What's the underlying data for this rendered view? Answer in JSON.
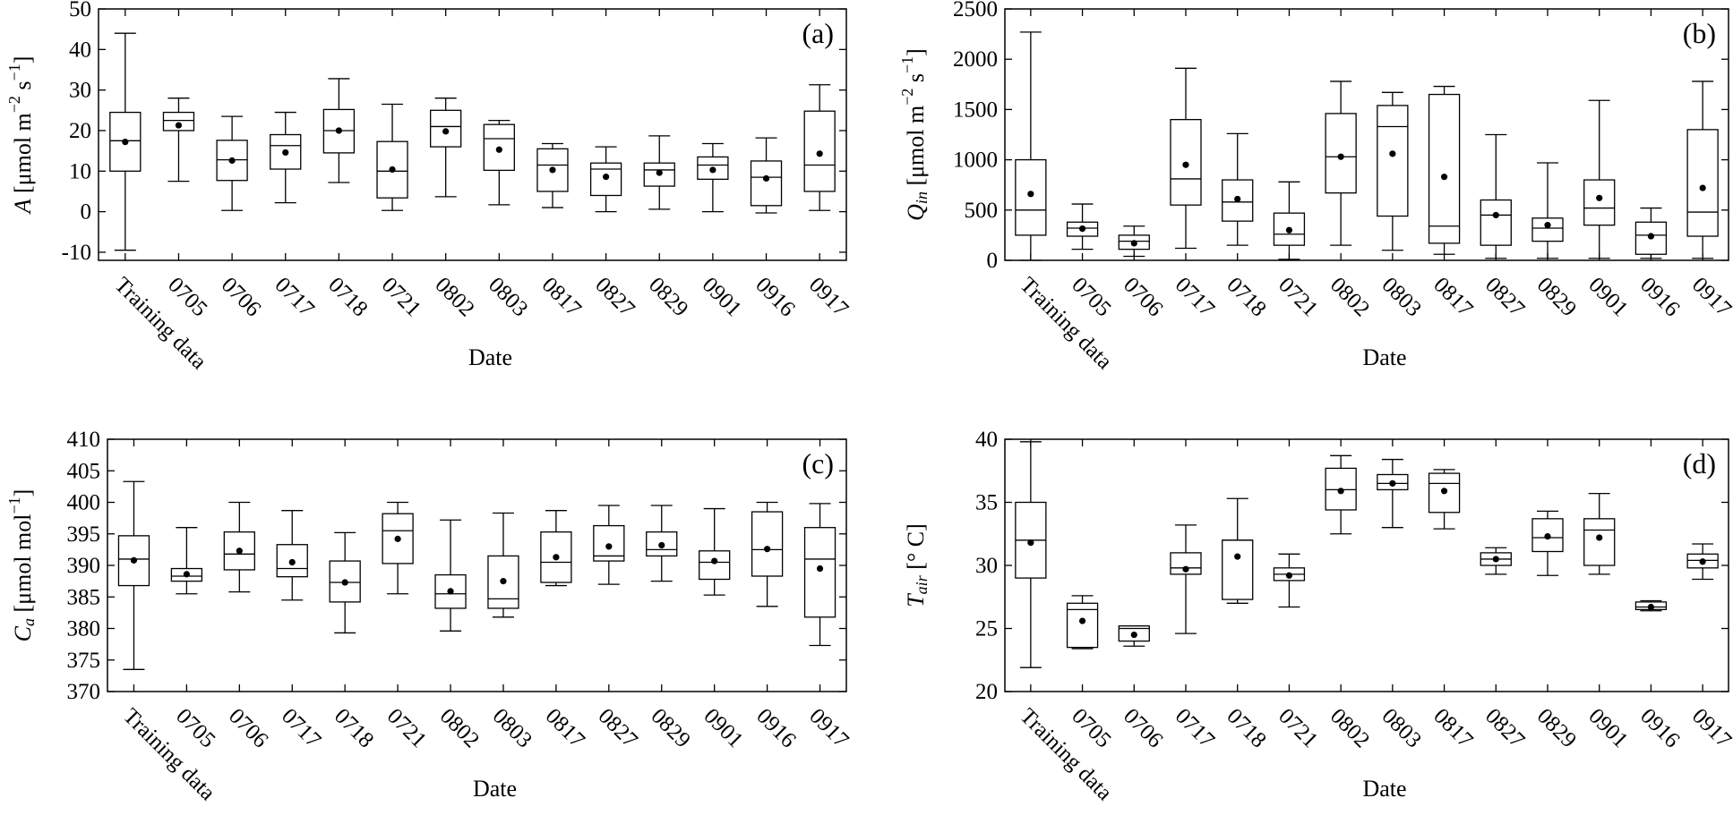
{
  "chart_data": [
    {
      "id": "a",
      "type": "box",
      "panel_label": "(a)",
      "xlabel": "Date",
      "ylabel_main": "A",
      "ylabel_rest": " [μmol m",
      "ylabel_sup1": "−2",
      "ylabel_mid": " s",
      "ylabel_sup2": "−1",
      "ylabel_end": "]",
      "ylim": [
        -12,
        50
      ],
      "yticks": [
        -10,
        0,
        10,
        20,
        30,
        40,
        50
      ],
      "categories": [
        "Training data",
        "0705",
        "0706",
        "0717",
        "0718",
        "0721",
        "0802",
        "0803",
        "0817",
        "0827",
        "0829",
        "0901",
        "0916",
        "0917"
      ],
      "boxes": [
        {
          "min": -9.5,
          "q1": 10,
          "median": 17.5,
          "q3": 24.5,
          "max": 44,
          "mean": 17.2
        },
        {
          "min": 7.5,
          "q1": 20,
          "median": 22.5,
          "q3": 24.5,
          "max": 28,
          "mean": 21.3
        },
        {
          "min": 0.3,
          "q1": 7.7,
          "median": 12.8,
          "q3": 17.6,
          "max": 23.5,
          "mean": 12.6
        },
        {
          "min": 2.2,
          "q1": 10.5,
          "median": 16.3,
          "q3": 19,
          "max": 24.5,
          "mean": 14.6
        },
        {
          "min": 7.2,
          "q1": 14.5,
          "median": 20,
          "q3": 25.2,
          "max": 32.8,
          "mean": 20
        },
        {
          "min": 0.3,
          "q1": 3.4,
          "median": 10,
          "q3": 17.3,
          "max": 26.5,
          "mean": 10.4
        },
        {
          "min": 3.7,
          "q1": 16,
          "median": 21,
          "q3": 25,
          "max": 28,
          "mean": 19.8
        },
        {
          "min": 1.7,
          "q1": 10.2,
          "median": 18,
          "q3": 21.5,
          "max": 22.5,
          "mean": 15.3
        },
        {
          "min": 1,
          "q1": 5,
          "median": 11.5,
          "q3": 15.5,
          "max": 16.8,
          "mean": 10.3
        },
        {
          "min": 0,
          "q1": 4,
          "median": 10.5,
          "q3": 12,
          "max": 16,
          "mean": 8.6
        },
        {
          "min": 0.6,
          "q1": 6.3,
          "median": 10.3,
          "q3": 12,
          "max": 18.7,
          "mean": 9.6
        },
        {
          "min": 0,
          "q1": 8,
          "median": 11.5,
          "q3": 13.5,
          "max": 16.8,
          "mean": 10.3
        },
        {
          "min": -0.3,
          "q1": 1.5,
          "median": 8.5,
          "q3": 12.5,
          "max": 18.2,
          "mean": 8.2
        },
        {
          "min": 0.3,
          "q1": 5,
          "median": 11.5,
          "q3": 24.8,
          "max": 31.3,
          "mean": 14.3
        }
      ]
    },
    {
      "id": "b",
      "type": "box",
      "panel_label": "(b)",
      "xlabel": "Date",
      "ylabel_main": "Q",
      "ylabel_sub": "in",
      "ylabel_rest": " [μmol m",
      "ylabel_sup1": "−2",
      "ylabel_mid": " s",
      "ylabel_sup2": "−1",
      "ylabel_end": "]",
      "ylim": [
        0,
        2500
      ],
      "yticks": [
        0,
        500,
        1000,
        1500,
        2000,
        2500
      ],
      "categories": [
        "Training data",
        "0705",
        "0706",
        "0717",
        "0718",
        "0721",
        "0802",
        "0803",
        "0817",
        "0827",
        "0829",
        "0901",
        "0916",
        "0917"
      ],
      "boxes": [
        {
          "min": 0,
          "q1": 250,
          "median": 500,
          "q3": 1000,
          "max": 2270,
          "mean": 660
        },
        {
          "min": 110,
          "q1": 240,
          "median": 320,
          "q3": 380,
          "max": 560,
          "mean": 315
        },
        {
          "min": 40,
          "q1": 110,
          "median": 190,
          "q3": 250,
          "max": 340,
          "mean": 170
        },
        {
          "min": 120,
          "q1": 550,
          "median": 810,
          "q3": 1400,
          "max": 1910,
          "mean": 950
        },
        {
          "min": 150,
          "q1": 390,
          "median": 580,
          "q3": 800,
          "max": 1260,
          "mean": 610
        },
        {
          "min": 10,
          "q1": 150,
          "median": 260,
          "q3": 470,
          "max": 780,
          "mean": 300
        },
        {
          "min": 150,
          "q1": 670,
          "median": 1030,
          "q3": 1460,
          "max": 1780,
          "mean": 1030
        },
        {
          "min": 100,
          "q1": 440,
          "median": 1330,
          "q3": 1540,
          "max": 1670,
          "mean": 1060
        },
        {
          "min": 60,
          "q1": 170,
          "median": 340,
          "q3": 1650,
          "max": 1730,
          "mean": 830
        },
        {
          "min": 20,
          "q1": 150,
          "median": 450,
          "q3": 600,
          "max": 1250,
          "mean": 450
        },
        {
          "min": 20,
          "q1": 190,
          "median": 320,
          "q3": 420,
          "max": 970,
          "mean": 350
        },
        {
          "min": 20,
          "q1": 350,
          "median": 520,
          "q3": 800,
          "max": 1590,
          "mean": 620
        },
        {
          "min": 20,
          "q1": 60,
          "median": 250,
          "q3": 380,
          "max": 520,
          "mean": 240
        },
        {
          "min": 20,
          "q1": 240,
          "median": 480,
          "q3": 1300,
          "max": 1780,
          "mean": 720
        }
      ]
    },
    {
      "id": "c",
      "type": "box",
      "panel_label": "(c)",
      "xlabel": "Date",
      "ylabel_main": "C",
      "ylabel_sub": "a",
      "ylabel_rest": " [μmol mol",
      "ylabel_sup1": "−1",
      "ylabel_end": "]",
      "ylim": [
        370,
        410
      ],
      "yticks": [
        370,
        375,
        380,
        385,
        390,
        395,
        400,
        405,
        410
      ],
      "categories": [
        "Training data",
        "0705",
        "0706",
        "0717",
        "0718",
        "0721",
        "0802",
        "0803",
        "0817",
        "0827",
        "0829",
        "0901",
        "0916",
        "0917"
      ],
      "boxes": [
        {
          "min": 373.5,
          "q1": 386.8,
          "median": 391,
          "q3": 394.7,
          "max": 403.3,
          "mean": 390.8
        },
        {
          "min": 385.5,
          "q1": 387.5,
          "median": 388.3,
          "q3": 389.5,
          "max": 396,
          "mean": 388.6
        },
        {
          "min": 385.8,
          "q1": 389.3,
          "median": 391.8,
          "q3": 395.3,
          "max": 400,
          "mean": 392.3
        },
        {
          "min": 384.5,
          "q1": 388.2,
          "median": 389.5,
          "q3": 393.3,
          "max": 398.7,
          "mean": 390.5
        },
        {
          "min": 379.3,
          "q1": 384.2,
          "median": 387.3,
          "q3": 390.7,
          "max": 395.2,
          "mean": 387.3
        },
        {
          "min": 385.5,
          "q1": 390.3,
          "median": 395.5,
          "q3": 398.2,
          "max": 400,
          "mean": 394.2
        },
        {
          "min": 379.6,
          "q1": 383.2,
          "median": 385.5,
          "q3": 388.5,
          "max": 397.2,
          "mean": 385.9
        },
        {
          "min": 381.8,
          "q1": 383.2,
          "median": 384.7,
          "q3": 391.5,
          "max": 398.3,
          "mean": 387.5
        },
        {
          "min": 386.8,
          "q1": 387.3,
          "median": 390.5,
          "q3": 395.3,
          "max": 398.7,
          "mean": 391.3
        },
        {
          "min": 387,
          "q1": 390.7,
          "median": 391.5,
          "q3": 396.3,
          "max": 399.5,
          "mean": 393
        },
        {
          "min": 387.5,
          "q1": 391.5,
          "median": 392.5,
          "q3": 395.3,
          "max": 399.5,
          "mean": 393.2
        },
        {
          "min": 385.3,
          "q1": 387.8,
          "median": 390.5,
          "q3": 392.3,
          "max": 399,
          "mean": 390.7
        },
        {
          "min": 383.5,
          "q1": 388.3,
          "median": 392.5,
          "q3": 398.5,
          "max": 400,
          "mean": 392.6
        },
        {
          "min": 377.3,
          "q1": 381.8,
          "median": 391,
          "q3": 396,
          "max": 399.8,
          "mean": 389.5
        }
      ]
    },
    {
      "id": "d",
      "type": "box",
      "panel_label": "(d)",
      "xlabel": "Date",
      "ylabel_main": "T",
      "ylabel_sub": "air",
      "ylabel_rest": " [° C]",
      "ylim": [
        20,
        40
      ],
      "yticks": [
        20,
        25,
        30,
        35,
        40
      ],
      "categories": [
        "Training data",
        "0705",
        "0706",
        "0717",
        "0718",
        "0721",
        "0802",
        "0803",
        "0817",
        "0827",
        "0829",
        "0901",
        "0916",
        "0917"
      ],
      "boxes": [
        {
          "min": 21.9,
          "q1": 29,
          "median": 32,
          "q3": 35,
          "max": 39.8,
          "mean": 31.8
        },
        {
          "min": 23.4,
          "q1": 23.5,
          "median": 26.5,
          "q3": 27,
          "max": 27.6,
          "mean": 25.6
        },
        {
          "min": 23.6,
          "q1": 24,
          "median": 25,
          "q3": 25.2,
          "max": 25.2,
          "mean": 24.5
        },
        {
          "min": 24.6,
          "q1": 29.3,
          "median": 29.8,
          "q3": 31,
          "max": 33.2,
          "mean": 29.7
        },
        {
          "min": 27,
          "q1": 27.3,
          "median": 32,
          "q3": 32,
          "max": 35.3,
          "mean": 30.7
        },
        {
          "min": 26.7,
          "q1": 28.8,
          "median": 29.3,
          "q3": 29.8,
          "max": 30.9,
          "mean": 29.2
        },
        {
          "min": 32.5,
          "q1": 34.4,
          "median": 36,
          "q3": 37.7,
          "max": 38.7,
          "mean": 35.9
        },
        {
          "min": 33,
          "q1": 36,
          "median": 36.5,
          "q3": 37.2,
          "max": 38.4,
          "mean": 36.5
        },
        {
          "min": 32.9,
          "q1": 34.2,
          "median": 36.5,
          "q3": 37.3,
          "max": 37.6,
          "mean": 35.9
        },
        {
          "min": 29.3,
          "q1": 30,
          "median": 30.5,
          "q3": 31,
          "max": 31.4,
          "mean": 30.5
        },
        {
          "min": 29.2,
          "q1": 31.1,
          "median": 32.2,
          "q3": 33.7,
          "max": 34.3,
          "mean": 32.3
        },
        {
          "min": 29.3,
          "q1": 30,
          "median": 32.8,
          "q3": 33.7,
          "max": 35.7,
          "mean": 32.2
        },
        {
          "min": 26.4,
          "q1": 26.5,
          "median": 26.7,
          "q3": 27.1,
          "max": 27.2,
          "mean": 26.7
        },
        {
          "min": 28.9,
          "q1": 29.8,
          "median": 30.4,
          "q3": 30.9,
          "max": 31.7,
          "mean": 30.3
        }
      ]
    }
  ]
}
